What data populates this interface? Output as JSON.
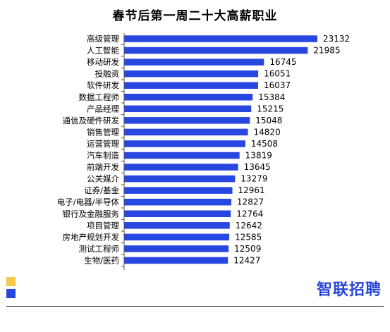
{
  "colors": {
    "bar": "#2846e0",
    "deco_top": "#f7c948",
    "deco_bottom": "#2846e0",
    "brand": "#2846d8"
  },
  "brand": {
    "text": "智联招聘"
  },
  "chart_data": {
    "type": "bar",
    "orientation": "horizontal",
    "title": "春节后第一周二十大高薪职业",
    "categories": [
      "高级管理",
      "人工智能",
      "移动研发",
      "投融资",
      "软件研发",
      "数据工程师",
      "产品经理",
      "通信及硬件研发",
      "销售管理",
      "运营管理",
      "汽车制造",
      "前端开发",
      "公关媒介",
      "证券/基金",
      "电子/电器/半导体",
      "银行及金融服务",
      "项目管理",
      "房地产规划开发",
      "测试工程师",
      "生物/医药"
    ],
    "values": [
      23132,
      21985,
      16745,
      16051,
      16037,
      15384,
      15215,
      15048,
      14820,
      14508,
      13819,
      13645,
      13279,
      12961,
      12827,
      12764,
      12642,
      12585,
      12509,
      12427
    ],
    "value_labels": [
      "23132",
      "21985",
      "16745",
      "16051",
      "16037",
      "15384",
      "15215",
      "15048",
      "14820",
      "14508",
      "13819",
      "13645",
      "13279",
      "12961",
      "12827",
      "12764",
      "12642",
      "12585",
      "12509",
      "12427"
    ],
    "xlabel": "",
    "ylabel": "",
    "xlim": [
      0,
      23132
    ],
    "grid": false,
    "legend": "none"
  }
}
